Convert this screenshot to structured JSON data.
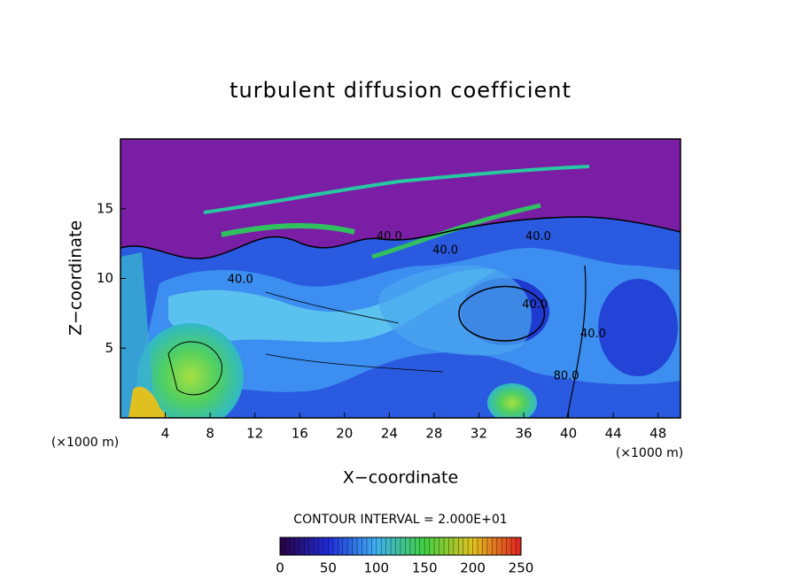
{
  "chart_data": {
    "type": "contour",
    "title": "turbulent diffusion coefficient",
    "xlabel": "X−coordinate",
    "ylabel": "Z−coordinate",
    "unit_label": "(×1000 m)",
    "xlim": [
      0,
      50
    ],
    "ylim": [
      0,
      20
    ],
    "xticks": [
      4,
      8,
      12,
      16,
      20,
      24,
      28,
      32,
      36,
      40,
      44,
      48
    ],
    "yticks": [
      5,
      10,
      15
    ],
    "contour_interval_label": "CONTOUR INTERVAL = 2.000E+01",
    "contour_labels": [
      {
        "text": "40.0",
        "x": 24,
        "y": 13
      },
      {
        "text": "40.0",
        "x": 29,
        "y": 12
      },
      {
        "text": "40.0",
        "x": 37.3,
        "y": 13
      },
      {
        "text": "40.0",
        "x": 10.7,
        "y": 9.9
      },
      {
        "text": "40.0",
        "x": 37,
        "y": 8.1
      },
      {
        "text": "40.0",
        "x": 42.2,
        "y": 6
      },
      {
        "text": "80.0",
        "x": 39.8,
        "y": 3
      }
    ],
    "colorbar": {
      "lim": [
        0,
        250
      ],
      "ticks": [
        0,
        50,
        100,
        150,
        200,
        250
      ],
      "colors": [
        "#2a0040",
        "#1e2cd8",
        "#3fb0f0",
        "#40d040",
        "#e0c020",
        "#e02020"
      ]
    }
  }
}
